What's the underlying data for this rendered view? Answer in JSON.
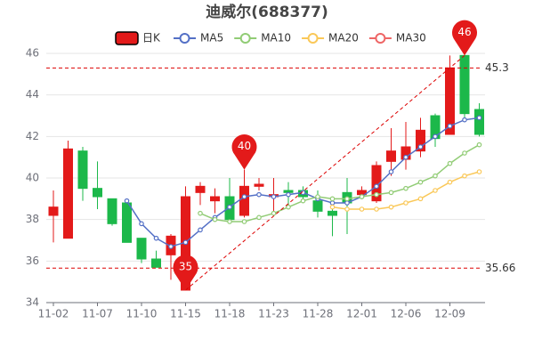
{
  "chart_data": {
    "type": "candlestick",
    "title": "迪威尔(688377)",
    "categories": [
      "11-02",
      null,
      null,
      "11-07",
      null,
      null,
      "11-10",
      null,
      null,
      "11-15",
      null,
      null,
      "11-18",
      null,
      null,
      "11-23",
      null,
      null,
      "11-28",
      null,
      null,
      "12-01",
      null,
      null,
      "12-06",
      null,
      null,
      "12-09",
      null,
      null
    ],
    "candle_name": "日K",
    "up_color": "#e31a1a",
    "down_color": "#1cb84a",
    "open": [
      38.2,
      37.1,
      41.3,
      39.5,
      39.0,
      38.8,
      37.1,
      36.1,
      36.3,
      34.6,
      39.3,
      38.9,
      39.1,
      38.2,
      39.6,
      39.1,
      39.4,
      39.4,
      38.9,
      38.4,
      39.3,
      39.2,
      38.9,
      40.8,
      40.9,
      41.3,
      43.0,
      42.1,
      45.9,
      43.3
    ],
    "close": [
      38.6,
      41.4,
      39.5,
      39.1,
      37.8,
      36.9,
      36.1,
      35.7,
      37.2,
      39.1,
      39.6,
      39.1,
      38.0,
      39.6,
      39.7,
      39.2,
      39.3,
      39.1,
      38.4,
      38.2,
      38.8,
      39.4,
      40.6,
      41.3,
      41.5,
      42.3,
      41.9,
      45.3,
      43.1,
      42.1
    ],
    "high": [
      39.4,
      41.8,
      41.5,
      40.8,
      39.0,
      38.9,
      37.1,
      36.5,
      37.3,
      39.6,
      39.8,
      39.5,
      40.0,
      40.4,
      40.0,
      40.0,
      39.8,
      39.6,
      39.4,
      38.9,
      40.0,
      39.6,
      40.8,
      42.4,
      42.7,
      42.9,
      43.1,
      45.9,
      45.9,
      43.6
    ],
    "low": [
      36.9,
      37.1,
      38.9,
      38.5,
      37.7,
      36.9,
      35.9,
      35.7,
      35.1,
      34.6,
      38.7,
      38.3,
      37.9,
      38.1,
      39.4,
      38.3,
      38.7,
      38.9,
      38.1,
      37.2,
      37.3,
      39.0,
      38.8,
      40.1,
      40.4,
      41.0,
      41.5,
      42.1,
      42.9,
      42.0
    ],
    "series": [
      {
        "name": "MA5",
        "color": "#5470c6",
        "values": [
          null,
          null,
          null,
          null,
          null,
          38.9,
          37.8,
          37.1,
          36.7,
          36.9,
          37.5,
          38.1,
          38.6,
          39.1,
          39.2,
          39.1,
          39.2,
          39.3,
          39.0,
          38.8,
          38.8,
          39.1,
          39.6,
          40.3,
          41.0,
          41.5,
          42.0,
          42.5,
          42.8,
          42.9
        ]
      },
      {
        "name": "MA10",
        "color": "#91cc75",
        "values": [
          null,
          null,
          null,
          null,
          null,
          null,
          null,
          null,
          null,
          null,
          38.3,
          38.0,
          37.9,
          37.9,
          38.1,
          38.3,
          38.6,
          38.9,
          39.1,
          39.0,
          39.0,
          39.1,
          39.2,
          39.3,
          39.5,
          39.8,
          40.1,
          40.7,
          41.2,
          41.6
        ]
      },
      {
        "name": "MA20",
        "color": "#fac858",
        "values": [
          null,
          null,
          null,
          null,
          null,
          null,
          null,
          null,
          null,
          null,
          null,
          null,
          null,
          null,
          null,
          null,
          null,
          null,
          null,
          38.6,
          38.5,
          38.5,
          38.5,
          38.6,
          38.8,
          39.0,
          39.4,
          39.8,
          40.1,
          40.3
        ]
      },
      {
        "name": "MA30",
        "color": "#ee6666",
        "values": [
          null,
          null,
          null,
          null,
          null,
          null,
          null,
          null,
          null,
          null,
          null,
          null,
          null,
          null,
          null,
          null,
          null,
          null,
          null,
          null,
          null,
          null,
          null,
          null,
          null,
          null,
          null,
          null,
          null,
          null
        ]
      }
    ],
    "mark_points": [
      {
        "value": 46,
        "index": 28,
        "at": "high"
      },
      {
        "value": 40,
        "index": 13,
        "at": "high"
      },
      {
        "value": 35,
        "index": 9,
        "at": "low"
      }
    ],
    "mark_lines": [
      45.3,
      35.66
    ],
    "ylim": [
      34,
      46
    ],
    "yticks": [
      34,
      36,
      38,
      40,
      42,
      44,
      46
    ],
    "grid": true
  }
}
